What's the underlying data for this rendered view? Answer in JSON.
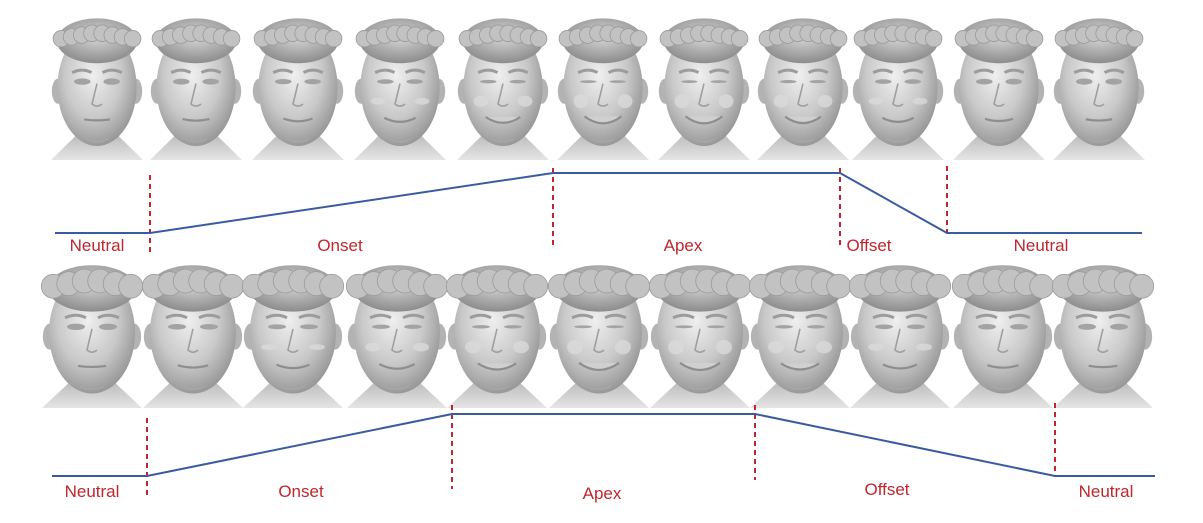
{
  "colors": {
    "label": "#c0262d",
    "boundary": "#c0262d",
    "curve": "#3a5ba0",
    "face_light": "#e6e6e6",
    "face_mid": "#bdbdbd",
    "face_dark": "#8a8a8a"
  },
  "rows": [
    {
      "subject": "adult",
      "face_count": 11,
      "smile_levels": [
        0,
        0.1,
        0.3,
        0.5,
        0.8,
        1.0,
        1.0,
        0.9,
        0.5,
        0.2,
        0.05
      ],
      "timeline_levels": {
        "neutral": 0,
        "apex": 1
      },
      "phases": [
        {
          "label": "Neutral"
        },
        {
          "label": "Onset"
        },
        {
          "label": "Apex"
        },
        {
          "label": "Offset"
        },
        {
          "label": "Neutral"
        }
      ]
    },
    {
      "subject": "child",
      "face_count": 11,
      "smile_levels": [
        0,
        0.2,
        0.4,
        0.6,
        0.85,
        1.0,
        1.0,
        0.85,
        0.5,
        0.25,
        0.05
      ],
      "timeline_levels": {
        "neutral": 0,
        "apex": 1
      },
      "phases": [
        {
          "label": "Neutral"
        },
        {
          "label": "Onset"
        },
        {
          "label": "Apex"
        },
        {
          "label": "Offset"
        },
        {
          "label": "Neutral"
        }
      ]
    }
  ]
}
